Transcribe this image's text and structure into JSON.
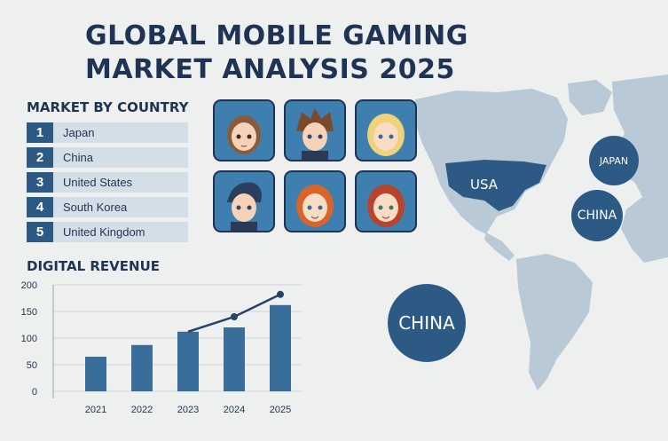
{
  "header": {
    "title_line1": "GLOBAL MOBILE GAMING",
    "title_line2": "MARKET ANALYSIS 2025"
  },
  "market_by_country": {
    "title": "MARKET BY COUNTRY",
    "items": [
      {
        "rank": "1",
        "name": "Japan"
      },
      {
        "rank": "2",
        "name": "China"
      },
      {
        "rank": "3",
        "name": "United States"
      },
      {
        "rank": "4",
        "name": "South Korea"
      },
      {
        "rank": "5",
        "name": "United Kingdom"
      }
    ]
  },
  "map": {
    "labels": {
      "usa": "USA",
      "japan": "JAPAN",
      "china_small": "CHINA",
      "china_big": "CHINA"
    }
  },
  "colors": {
    "primary": "#2c5a85",
    "title": "#1f3454",
    "map_land": "#b9c9d6",
    "row_bg": "#d3dee6",
    "background": "#eef0ef"
  },
  "chart_data": {
    "type": "bar",
    "title": "DIGITAL REVENUE",
    "categories": [
      "2021",
      "2022",
      "2023",
      "2024",
      "2025"
    ],
    "values": [
      65,
      87,
      112,
      120,
      162
    ],
    "trend_line": {
      "categories": [
        "2023",
        "2024",
        "2025"
      ],
      "values": [
        112,
        140,
        182
      ]
    },
    "y_ticks": [
      200,
      150,
      100,
      50,
      0
    ],
    "ylim": [
      0,
      200
    ],
    "xlabel": "",
    "ylabel": "",
    "grid": true,
    "legend": "none"
  }
}
